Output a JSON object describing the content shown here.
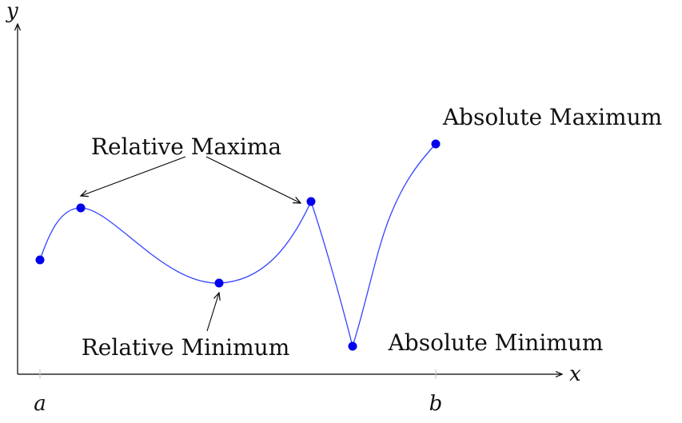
{
  "axes": {
    "x_label": "x",
    "y_label": "y",
    "x_ticks": [
      "a",
      "b"
    ]
  },
  "annotations": {
    "relative_maxima": "Relative Maxima",
    "relative_minimum": "Relative Minimum",
    "absolute_maximum": "Absolute Maximum",
    "absolute_minimum": "Absolute Minimum"
  },
  "colors": {
    "curve": "#3344ff",
    "points": "#0000ee",
    "axes": "#000000",
    "text": "#111111"
  }
}
